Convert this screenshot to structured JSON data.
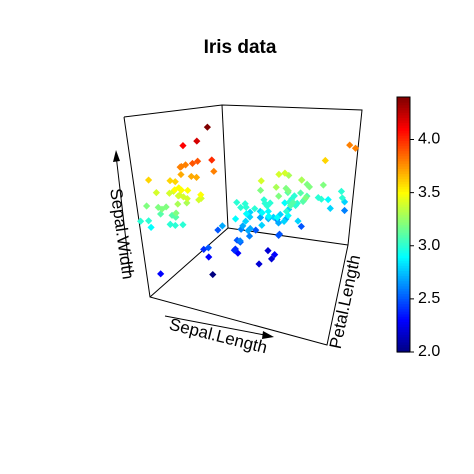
{
  "chart_data": {
    "type": "scatter3d",
    "title": "Iris data",
    "xlabel": "Sepal.Length",
    "ylabel": "Petal.Length",
    "zlabel": "Sepal.Width",
    "xlim": [
      4.3,
      7.9
    ],
    "ylim": [
      1.0,
      6.9
    ],
    "zlim": [
      2.0,
      4.4
    ],
    "colormap": "jet",
    "clim": [
      2.0,
      4.4
    ],
    "cticks": [
      {
        "value": 2.0,
        "label": "2.0"
      },
      {
        "value": 2.5,
        "label": "2.5"
      },
      {
        "value": 3.0,
        "label": "3.0"
      },
      {
        "value": 3.5,
        "label": "3.5"
      },
      {
        "value": 4.0,
        "label": "4.0"
      }
    ],
    "x": [
      5.1,
      4.9,
      4.7,
      4.6,
      5.0,
      5.4,
      4.6,
      5.0,
      4.4,
      4.9,
      5.4,
      4.8,
      4.8,
      4.3,
      5.8,
      5.7,
      5.4,
      5.1,
      5.7,
      5.1,
      5.4,
      5.1,
      4.6,
      5.1,
      4.8,
      5.0,
      5.0,
      5.2,
      5.2,
      4.7,
      4.8,
      5.4,
      5.2,
      5.5,
      4.9,
      5.0,
      5.5,
      4.9,
      4.4,
      5.1,
      5.0,
      4.5,
      4.4,
      5.0,
      5.1,
      4.8,
      5.1,
      4.6,
      5.3,
      5.0,
      7.0,
      6.4,
      6.9,
      5.5,
      6.5,
      5.7,
      6.3,
      4.9,
      6.6,
      5.2,
      5.0,
      5.9,
      6.0,
      6.1,
      5.6,
      6.7,
      5.6,
      5.8,
      6.2,
      5.6,
      5.9,
      6.1,
      6.3,
      6.1,
      6.4,
      6.6,
      6.8,
      6.7,
      6.0,
      5.7,
      5.5,
      5.5,
      5.8,
      6.0,
      5.4,
      6.0,
      6.7,
      6.3,
      5.6,
      5.5,
      5.5,
      6.1,
      5.8,
      5.0,
      5.6,
      5.7,
      5.7,
      6.2,
      5.1,
      5.7,
      6.3,
      5.8,
      7.1,
      6.3,
      6.5,
      7.6,
      4.9,
      7.3,
      6.7,
      7.2,
      6.5,
      6.4,
      6.8,
      5.7,
      5.8,
      6.4,
      6.5,
      7.7,
      7.7,
      6.0,
      6.9,
      5.6,
      7.7,
      6.3,
      6.7,
      7.2,
      6.2,
      6.1,
      6.4,
      7.2,
      7.4,
      7.9,
      6.4,
      6.3,
      6.1,
      7.7,
      6.3,
      6.4,
      6.0,
      6.9,
      6.7,
      6.9,
      5.8,
      6.8,
      6.7,
      6.7,
      6.3,
      6.5,
      6.2,
      5.9
    ],
    "y": [
      1.4,
      1.4,
      1.3,
      1.5,
      1.4,
      1.7,
      1.4,
      1.5,
      1.4,
      1.5,
      1.5,
      1.6,
      1.4,
      1.1,
      1.2,
      1.5,
      1.3,
      1.4,
      1.7,
      1.5,
      1.7,
      1.5,
      1.0,
      1.7,
      1.9,
      1.6,
      1.6,
      1.5,
      1.4,
      1.6,
      1.6,
      1.5,
      1.5,
      1.4,
      1.5,
      1.2,
      1.3,
      1.4,
      1.3,
      1.5,
      1.3,
      1.3,
      1.3,
      1.6,
      1.9,
      1.4,
      1.6,
      1.4,
      1.5,
      1.4,
      4.7,
      4.5,
      4.9,
      4.0,
      4.6,
      4.5,
      4.7,
      3.3,
      4.6,
      3.9,
      3.5,
      4.2,
      4.0,
      4.7,
      3.6,
      4.4,
      4.5,
      4.1,
      4.5,
      3.9,
      4.8,
      4.0,
      4.9,
      4.7,
      4.3,
      4.4,
      4.8,
      5.0,
      4.5,
      3.5,
      3.8,
      3.7,
      3.9,
      5.1,
      4.5,
      4.5,
      4.7,
      4.4,
      4.1,
      4.0,
      4.4,
      4.6,
      4.0,
      3.3,
      4.2,
      4.2,
      4.2,
      4.3,
      3.0,
      4.1,
      6.0,
      5.1,
      5.9,
      5.6,
      5.8,
      6.6,
      4.5,
      6.3,
      5.8,
      6.1,
      5.1,
      5.3,
      5.5,
      5.0,
      5.1,
      5.3,
      5.5,
      6.7,
      6.9,
      5.0,
      5.7,
      4.9,
      6.7,
      4.9,
      5.7,
      6.0,
      4.8,
      4.9,
      5.6,
      5.8,
      6.1,
      6.4,
      5.6,
      5.1,
      5.6,
      6.1,
      5.6,
      5.5,
      4.8,
      5.4,
      5.6,
      5.1,
      5.1,
      5.9,
      5.7,
      5.2,
      5.0,
      5.2,
      5.4,
      5.1
    ],
    "z": [
      3.5,
      3.0,
      3.2,
      3.1,
      3.6,
      3.9,
      3.4,
      3.4,
      2.9,
      3.1,
      3.7,
      3.4,
      3.0,
      3.0,
      4.0,
      4.4,
      3.9,
      3.5,
      3.8,
      3.8,
      3.4,
      3.7,
      3.6,
      3.3,
      3.4,
      3.0,
      3.4,
      3.5,
      3.4,
      3.2,
      3.1,
      3.4,
      4.1,
      4.2,
      3.1,
      3.2,
      3.5,
      3.6,
      3.0,
      3.4,
      3.5,
      2.3,
      3.2,
      3.5,
      3.8,
      3.0,
      3.8,
      3.2,
      3.7,
      3.3,
      3.2,
      3.2,
      3.1,
      2.3,
      2.8,
      2.8,
      3.3,
      2.4,
      2.9,
      2.7,
      2.0,
      3.0,
      2.2,
      2.9,
      2.9,
      3.1,
      3.0,
      2.7,
      2.2,
      2.5,
      3.2,
      2.8,
      2.5,
      2.8,
      2.9,
      3.0,
      2.8,
      3.0,
      2.9,
      2.6,
      2.4,
      2.4,
      2.7,
      2.7,
      3.0,
      3.4,
      3.1,
      2.3,
      3.0,
      2.5,
      2.6,
      3.0,
      2.6,
      2.3,
      2.7,
      3.0,
      2.9,
      2.9,
      2.5,
      2.8,
      3.3,
      2.7,
      3.0,
      2.9,
      3.0,
      3.0,
      2.5,
      2.9,
      2.5,
      3.6,
      3.2,
      2.7,
      3.0,
      2.5,
      2.8,
      3.2,
      3.0,
      3.8,
      2.6,
      2.2,
      3.2,
      2.8,
      2.8,
      2.7,
      3.3,
      3.2,
      2.8,
      3.0,
      2.8,
      3.0,
      2.8,
      3.8,
      2.8,
      2.8,
      2.6,
      3.0,
      3.4,
      3.1,
      3.0,
      3.1,
      3.1,
      3.1,
      2.7,
      3.2,
      3.3,
      3.0,
      2.5,
      3.0,
      3.4,
      3.0
    ]
  }
}
